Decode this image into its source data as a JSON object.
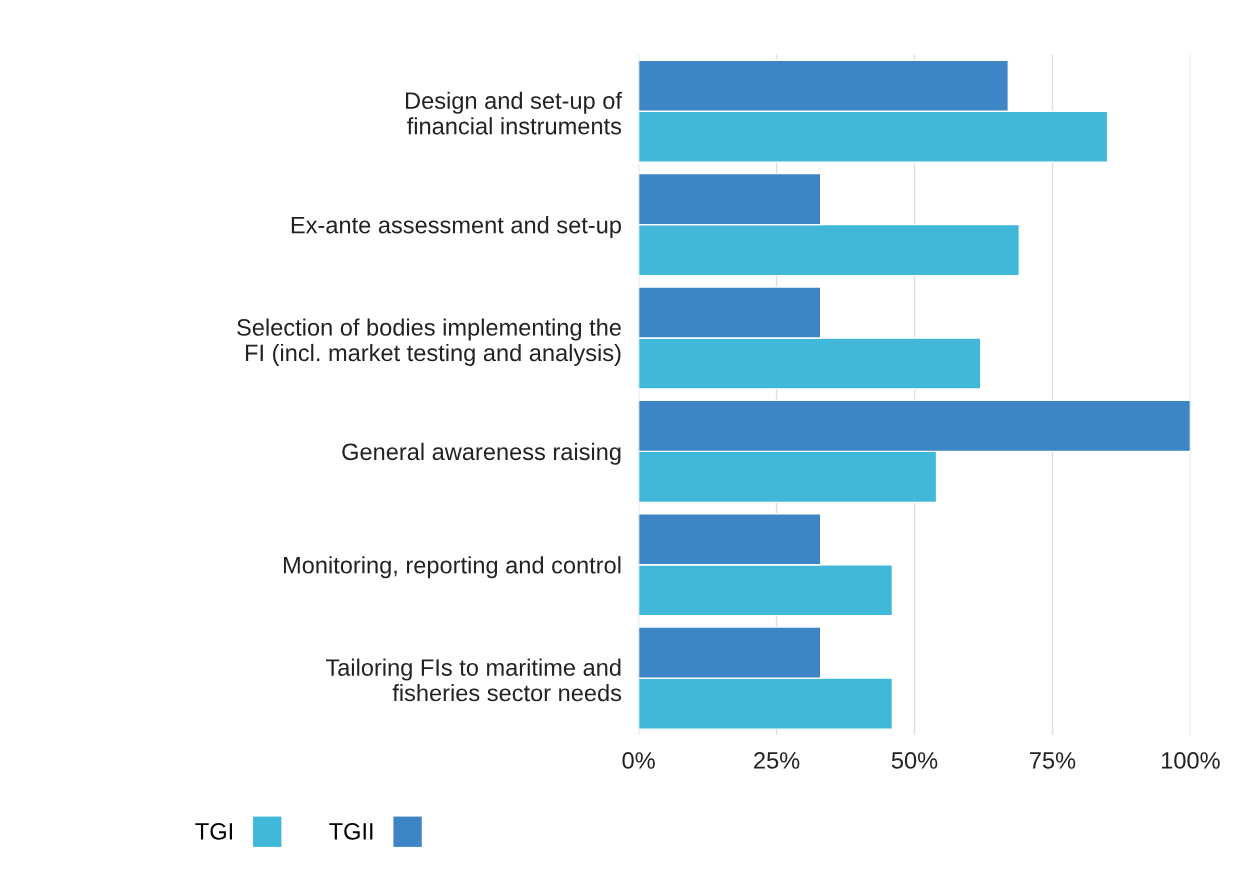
{
  "chart_data": {
    "type": "bar",
    "orientation": "horizontal",
    "categories": [
      "Design and set-up of\nfinancial instruments",
      "Ex-ante assessment and set-up",
      "Selection of bodies implementing the\nFI (incl. market testing and analysis)",
      "General awareness raising",
      "Monitoring, reporting and control",
      "Tailoring FIs to maritime and\nfisheries sector needs"
    ],
    "series": [
      {
        "name": "TGI",
        "color": "#41b8d8",
        "values": [
          85,
          69,
          62,
          54,
          46,
          46
        ]
      },
      {
        "name": "TGII",
        "color": "#3d85c4",
        "values": [
          67,
          33,
          33,
          100,
          33,
          33
        ]
      }
    ],
    "xlim": [
      0,
      100
    ],
    "xticks": [
      {
        "value": 0,
        "label": "0%"
      },
      {
        "value": 25,
        "label": "25%"
      },
      {
        "value": 50,
        "label": "50%"
      },
      {
        "value": 75,
        "label": "75%"
      },
      {
        "value": 100,
        "label": "100%"
      }
    ],
    "grid": "x",
    "legend": "bottom left"
  }
}
